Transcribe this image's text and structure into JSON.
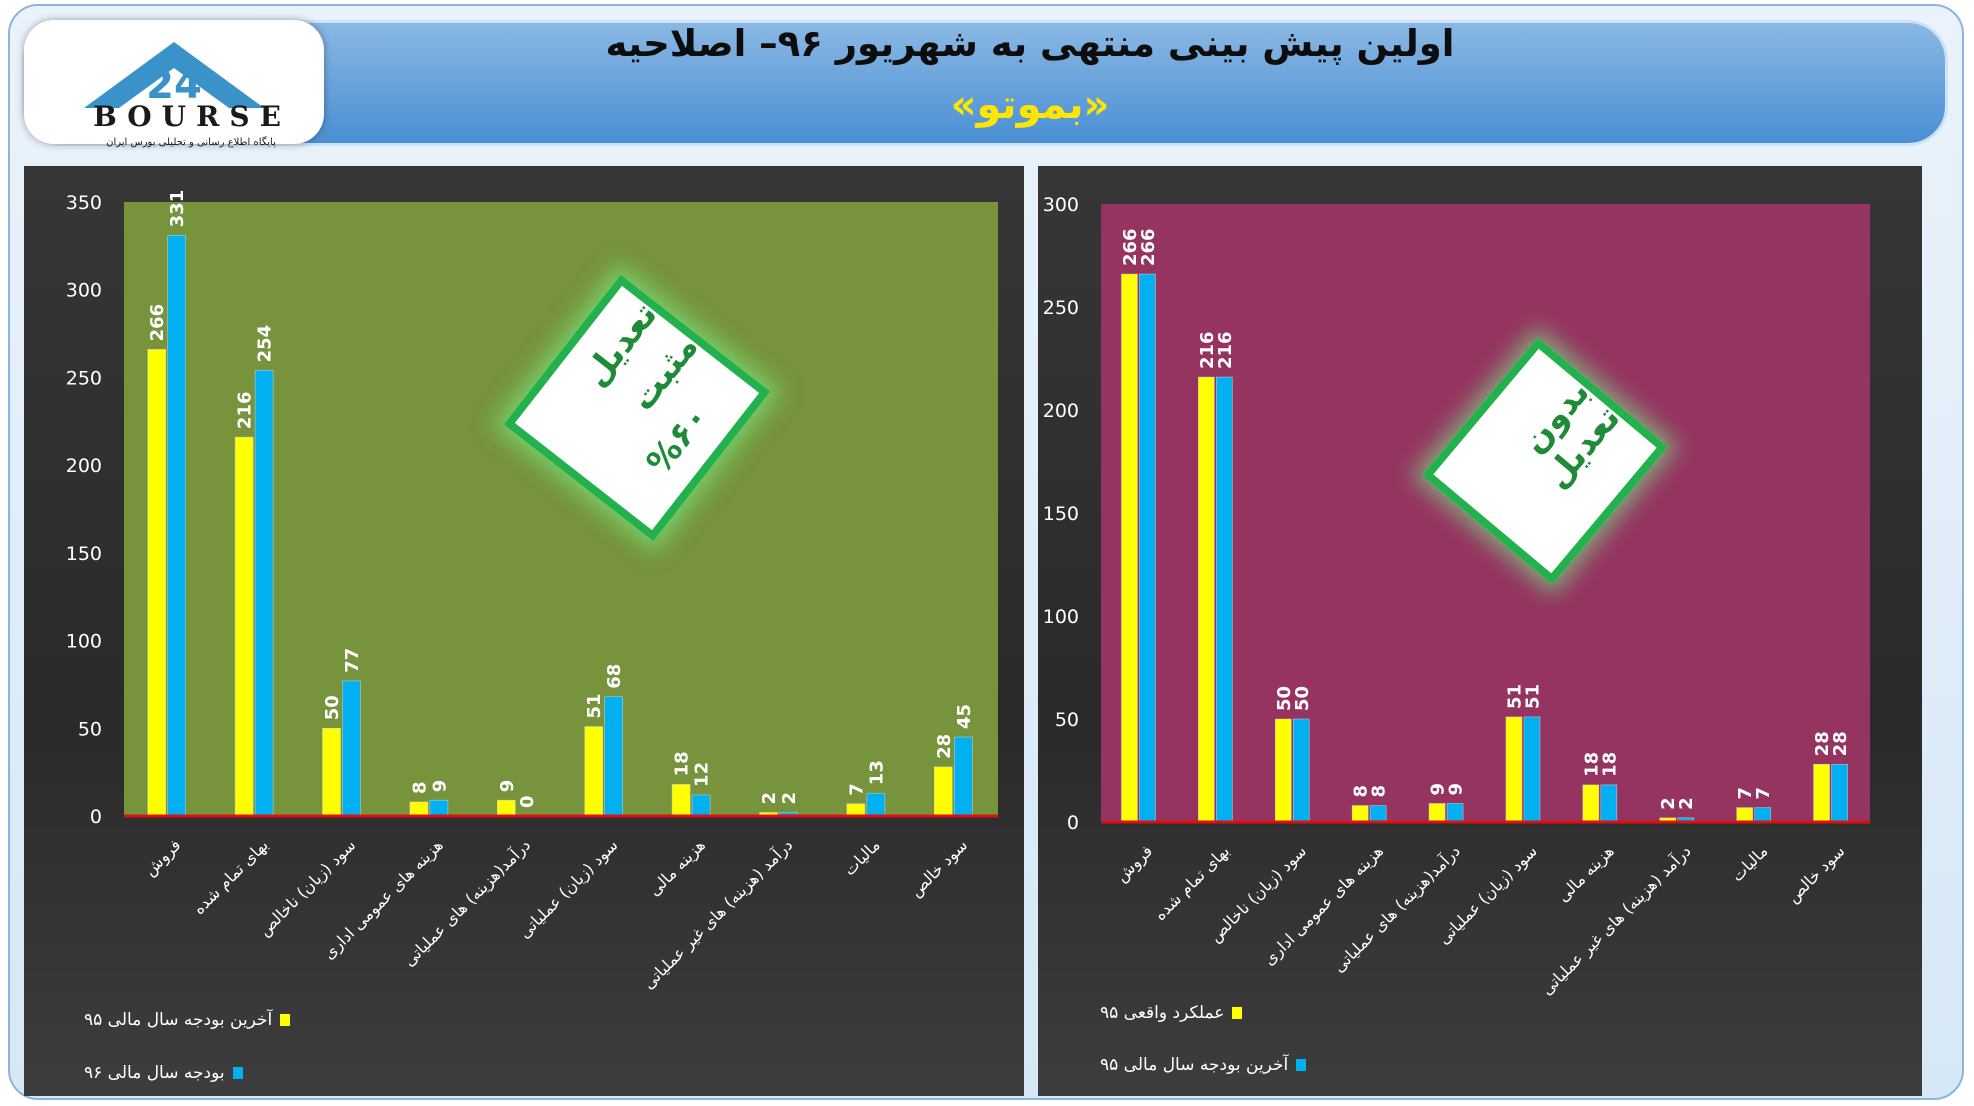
{
  "header": {
    "title": "اولین پیش بینی منتهی به شهریور ۹۶– اصلاحیه",
    "subtitle": "«بموتو»",
    "logo_text": "BOURSE",
    "logo_number": "24",
    "logo_subtext": "پایگاه اطلاع رسانی و تحلیلی بورس ایران"
  },
  "colors": {
    "left_bg": "#77933c",
    "right_bg": "#953461",
    "yellow_series": "#ffff00",
    "blue_series": "#00b0f0",
    "header_bg": "#4a8fd4",
    "title_accent": "#ffe600",
    "badge_border": "#22b14c"
  },
  "badges": {
    "left": {
      "line1": "تعدیل مثبت",
      "line2": "%۶۰"
    },
    "right": {
      "line1": "بدون تعدیل"
    }
  },
  "chart_data": [
    {
      "type": "bar",
      "categories": [
        "فروش",
        "بهای تمام شده",
        "سود (زیان) ناخالص",
        "هزینه های عمومی اداری",
        "درآمد(هزینه) های عملیاتی",
        "سود (زیان) عملیاتی",
        "هزینه مالی",
        "درآمد (هزینه) های غیر عملیاتی",
        "مالیات",
        "سود خالص"
      ],
      "series": [
        {
          "name": "آخرین بودجه سال مالی ۹۵",
          "values": [
            266,
            216,
            50,
            8,
            9,
            51,
            18,
            2,
            7,
            28
          ]
        },
        {
          "name": "بودجه سال مالی ۹۶",
          "values": [
            331,
            254,
            77,
            9,
            0,
            68,
            12,
            2,
            13,
            45
          ]
        }
      ],
      "yticks": [
        0,
        50,
        100,
        150,
        200,
        250,
        300,
        350
      ],
      "ylim": [
        0,
        350
      ],
      "grid": false,
      "legend_position": "bottom-left"
    },
    {
      "type": "bar",
      "categories": [
        "فروش",
        "بهای تمام شده",
        "سود (زیان) ناخالص",
        "هزینه های عمومی اداری",
        "درآمد(هزینه) های عملیاتی",
        "سود (زیان) عملیاتی",
        "هزینه مالی",
        "درآمد (هزینه) های غیر عملیاتی",
        "مالیات",
        "سود خالص"
      ],
      "series": [
        {
          "name": "عملکرد واقعی ۹۵",
          "values": [
            266,
            216,
            50,
            8,
            9,
            51,
            18,
            2,
            7,
            28
          ]
        },
        {
          "name": "آخرین بودجه سال مالی ۹۵",
          "values": [
            266,
            216,
            50,
            8,
            9,
            51,
            18,
            2,
            7,
            28
          ]
        }
      ],
      "yticks": [
        0,
        50,
        100,
        150,
        200,
        250,
        300
      ],
      "ylim": [
        0,
        300
      ],
      "grid": false,
      "legend_position": "bottom-left"
    }
  ]
}
